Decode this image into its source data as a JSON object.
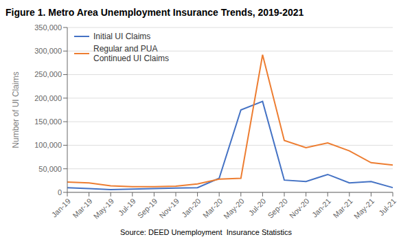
{
  "chart_data": {
    "type": "line",
    "title": "Figure 1. Metro Area Unemployment Insurance Trends, 2019-2021",
    "y_label": "Number of UI Claims",
    "annotations": [
      "Source: DEED Unemployment  Insurance Statistics"
    ],
    "categories": [
      "Jan-19",
      "Mar-19",
      "May-19",
      "Jul-19",
      "Sep-19",
      "Nov-19",
      "Jan-20",
      "Mar-20",
      "May-20",
      "Jul-20",
      "Sep-20",
      "Nov-20",
      "Jan-21",
      "Mar-21",
      "May-21",
      "Jul-21"
    ],
    "series": [
      {
        "name": "Initial UI Claims",
        "color": "#4472C4",
        "values": [
          10000,
          8000,
          6000,
          7000,
          8000,
          9000,
          10000,
          30000,
          175000,
          193000,
          26000,
          23000,
          38000,
          20000,
          23000,
          10000
        ]
      },
      {
        "name": "Regular and PUA\nContinued UI Claims",
        "color": "#ED7D31",
        "values": [
          22000,
          20000,
          14000,
          12000,
          12000,
          13000,
          18000,
          28000,
          30000,
          292000,
          110000,
          95000,
          105000,
          88000,
          63000,
          58000
        ]
      }
    ],
    "ylim": [
      0,
      350000
    ],
    "yticks": [
      0,
      {
        "value": 50000,
        "label": "50,000"
      },
      {
        "value": 100000,
        "label": "100,000"
      },
      {
        "value": 150000,
        "label": "150,000"
      },
      {
        "value": 200000,
        "label": "200,000"
      },
      {
        "value": 250000,
        "label": "250,000"
      },
      {
        "value": 300000,
        "label": "300,000"
      },
      {
        "value": 350000,
        "label": "350,000"
      }
    ],
    "grid": true,
    "legend": "upper left"
  }
}
